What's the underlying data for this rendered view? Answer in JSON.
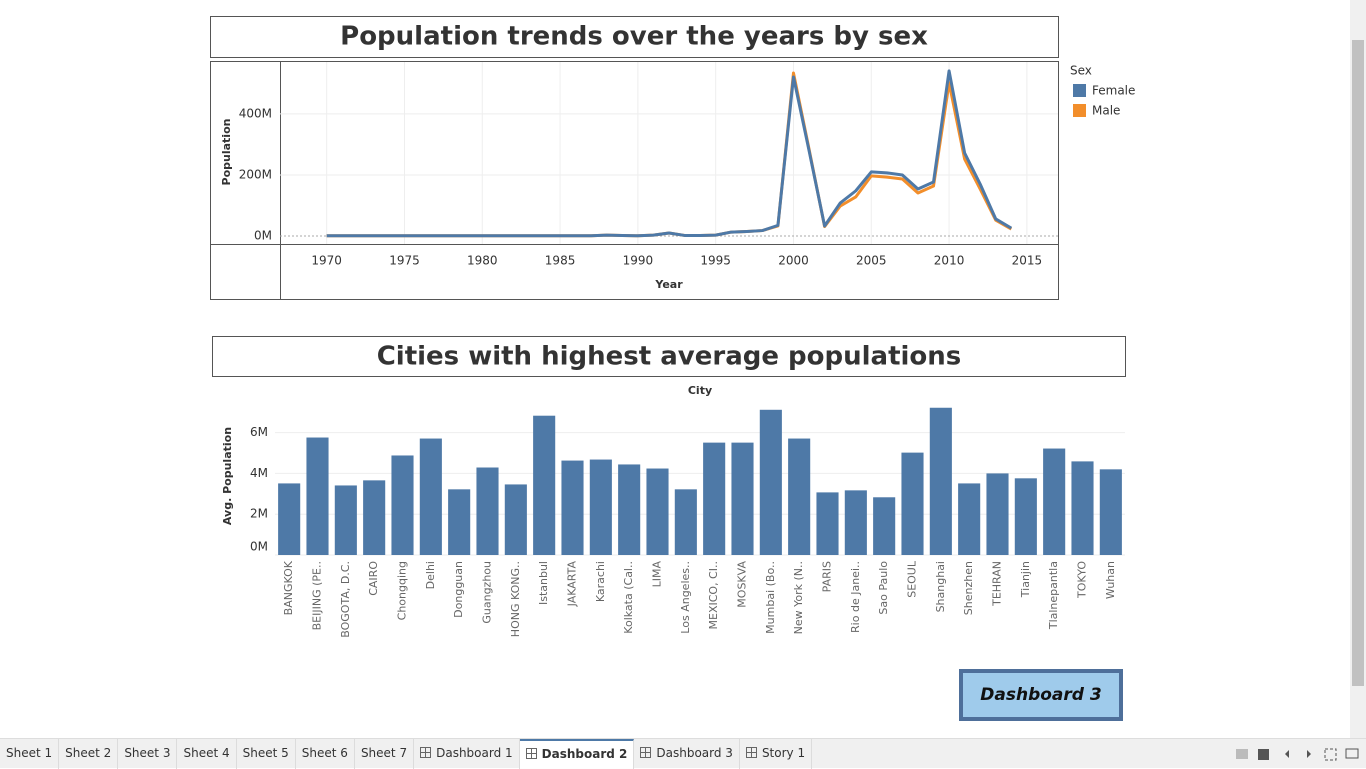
{
  "chart_data": [
    {
      "type": "line",
      "title": "Population trends over the years by sex",
      "x_label": "Year",
      "y_label": "Population",
      "x": [
        1970,
        1971,
        1972,
        1973,
        1974,
        1975,
        1976,
        1977,
        1978,
        1979,
        1980,
        1981,
        1982,
        1983,
        1984,
        1985,
        1986,
        1987,
        1988,
        1989,
        1990,
        1991,
        1992,
        1993,
        1994,
        1995,
        1996,
        1997,
        1998,
        1999,
        2000,
        2001,
        2002,
        2003,
        2004,
        2005,
        2006,
        2007,
        2008,
        2009,
        2010,
        2011,
        2012,
        2013,
        2014
      ],
      "series": [
        {
          "name": "Female",
          "color": "#4e79a7",
          "values": [
            1000000,
            1000000,
            1000000,
            1000000,
            1000000,
            1000000,
            1000000,
            1000000,
            1000000,
            1000000,
            1000000,
            1000000,
            1000000,
            1000000,
            1000000,
            1000000,
            1000000,
            1000000,
            3000000,
            2000000,
            1000000,
            3000000,
            10000000,
            2000000,
            2000000,
            3000000,
            13000000,
            15000000,
            18000000,
            35000000,
            521000000,
            280000000,
            33000000,
            108000000,
            148000000,
            210000000,
            207000000,
            200000000,
            154000000,
            177000000,
            541000000,
            272000000,
            170000000,
            56000000,
            26000000
          ]
        },
        {
          "name": "Male",
          "color": "#f28e2b",
          "values": [
            1000000,
            1000000,
            1000000,
            1000000,
            1000000,
            1000000,
            1000000,
            1000000,
            1000000,
            1000000,
            1000000,
            1000000,
            1000000,
            1000000,
            1000000,
            1000000,
            1000000,
            1000000,
            3000000,
            2000000,
            1000000,
            3000000,
            10000000,
            2000000,
            2000000,
            3000000,
            13000000,
            15000000,
            18000000,
            33000000,
            534000000,
            285000000,
            31000000,
            98000000,
            128000000,
            197000000,
            193000000,
            187000000,
            141000000,
            164000000,
            502000000,
            252000000,
            154000000,
            52000000,
            23000000
          ]
        }
      ],
      "legend_title": "Sex",
      "xlim": [
        1967,
        2017
      ],
      "xticks": [
        1970,
        1975,
        1980,
        1985,
        1990,
        1995,
        2000,
        2005,
        2010,
        2015
      ],
      "ylim": [
        -26000000,
        570000000
      ],
      "yticks": [
        {
          "value": 0,
          "label": "0M"
        },
        {
          "value": 200000000,
          "label": "200M"
        },
        {
          "value": 400000000,
          "label": "400M"
        }
      ],
      "grid": true
    },
    {
      "type": "bar",
      "title": "Cities with highest average populations",
      "x_label": "City",
      "y_label": "Avg. Population",
      "color": "#4e79a7",
      "categories": [
        "BANGKOK",
        "BEIJING (PE..",
        "BOGOTA, D.C.",
        "CAIRO",
        "Chongqing",
        "Delhi",
        "Dongguan",
        "Guangzhou",
        "HONG KONG..",
        "Istanbul",
        "JAKARTA",
        "Karachi",
        "Kolkata (Cal..",
        "LIMA",
        "Los Angeles..",
        "MEXICO, CI..",
        "MOSKVA",
        "Mumbai (Bo..",
        "New York (N..",
        "PARIS",
        "Rio de Janei..",
        "Sao Paulo",
        "SEOUL",
        "Shanghai",
        "Shenzhen",
        "TEHRAN",
        "Tianjin",
        "Tlalnepantla",
        "TOKYO",
        "Wuhan"
      ],
      "values": [
        3510000,
        5760000,
        3410000,
        3660000,
        4880000,
        5710000,
        3220000,
        4290000,
        3460000,
        6830000,
        4630000,
        4680000,
        4440000,
        4240000,
        3220000,
        5510000,
        5510000,
        7120000,
        5710000,
        3070000,
        3170000,
        2830000,
        5020000,
        7220000,
        3510000,
        4000000,
        3760000,
        5220000,
        4590000,
        4200000
      ],
      "ylim": [
        0,
        7600000
      ],
      "yticks": [
        {
          "value": 0,
          "label": "0M"
        },
        {
          "value": 2000000,
          "label": "2M"
        },
        {
          "value": 4000000,
          "label": "4M"
        },
        {
          "value": 6000000,
          "label": "6M"
        }
      ],
      "grid": true
    }
  ],
  "button": "Dashboard 3",
  "tabs": [
    "Sheet 1",
    "Sheet 2",
    "Sheet 3",
    "Sheet 4",
    "Sheet 5",
    "Sheet 6",
    "Sheet 7",
    "Dashboard 1",
    "Dashboard 2",
    "Dashboard 3",
    "Story 1"
  ]
}
